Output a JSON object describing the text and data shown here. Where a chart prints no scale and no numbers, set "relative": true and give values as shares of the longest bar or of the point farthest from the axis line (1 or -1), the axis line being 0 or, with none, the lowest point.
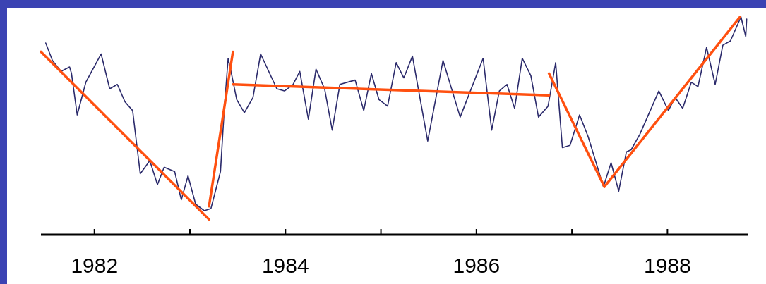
{
  "chart_data": {
    "type": "line",
    "relative": true,
    "xlim": [
      1981.44,
      1988.84
    ],
    "xticks": [
      1982,
      {
        "value": 1983,
        "label": null
      },
      1984,
      {
        "value": 1985,
        "label": null
      },
      1986,
      {
        "value": 1987,
        "label": null
      },
      1988
    ],
    "grid": false,
    "marker": "none",
    "line_style": "solid",
    "series": [
      {
        "color": "#2b2a6b",
        "x": [
          1981.49,
          1981.56,
          1981.65,
          1981.74,
          1981.76,
          1981.82,
          1981.91,
          1982.07,
          1982.16,
          1982.24,
          1982.32,
          1982.4,
          1982.48,
          1982.58,
          1982.66,
          1982.73,
          1982.84,
          1982.91,
          1982.98,
          1983.06,
          1983.15,
          1983.22,
          1983.32,
          1983.36,
          1983.4,
          1983.43,
          1983.49,
          1983.57,
          1983.66,
          1983.74,
          1983.91,
          1983.99,
          1984.08,
          1984.15,
          1984.24,
          1984.32,
          1984.41,
          1984.49,
          1984.57,
          1984.73,
          1984.82,
          1984.9,
          1984.98,
          1985.07,
          1985.16,
          1985.24,
          1985.33,
          1985.49,
          1985.65,
          1985.83,
          1986.07,
          1986.16,
          1986.24,
          1986.32,
          1986.4,
          1986.48,
          1986.57,
          1986.65,
          1986.75,
          1986.83,
          1986.9,
          1986.98,
          1987.08,
          1987.17,
          1987.33,
          1987.41,
          1987.49,
          1987.57,
          1987.62,
          1987.71,
          1987.91,
          1988.01,
          1988.08,
          1988.16,
          1988.25,
          1988.32,
          1988.41,
          1988.5,
          1988.58,
          1988.66,
          1988.77,
          1988.82,
          1988.83
        ],
        "values": [
          0.88,
          0.8,
          0.75,
          0.77,
          0.74,
          0.55,
          0.7,
          0.83,
          0.67,
          0.69,
          0.61,
          0.57,
          0.28,
          0.34,
          0.23,
          0.31,
          0.29,
          0.16,
          0.27,
          0.14,
          0.11,
          0.12,
          0.29,
          0.58,
          0.81,
          0.75,
          0.62,
          0.56,
          0.63,
          0.83,
          0.67,
          0.66,
          0.69,
          0.75,
          0.53,
          0.76,
          0.67,
          0.48,
          0.69,
          0.71,
          0.57,
          0.74,
          0.62,
          0.59,
          0.79,
          0.72,
          0.82,
          0.43,
          0.8,
          0.54,
          0.81,
          0.48,
          0.66,
          0.69,
          0.58,
          0.81,
          0.73,
          0.54,
          0.59,
          0.79,
          0.4,
          0.41,
          0.55,
          0.45,
          0.22,
          0.33,
          0.2,
          0.38,
          0.39,
          0.46,
          0.66,
          0.57,
          0.63,
          0.58,
          0.7,
          0.68,
          0.86,
          0.69,
          0.87,
          0.89,
          1,
          0.91,
          0.99
        ]
      },
      {
        "color": "#ff5010",
        "x": [
          1981.44,
          1983.2
        ],
        "values": [
          0.84,
          0.07
        ]
      },
      {
        "color": "#ff5010",
        "x": [
          1983.2,
          1983.45
        ],
        "values": [
          0.13,
          0.84
        ]
      },
      {
        "color": "#ff5010",
        "x": [
          1983.45,
          1986.76
        ],
        "values": [
          0.69,
          0.64
        ]
      },
      {
        "color": "#ff5010",
        "x": [
          1986.76,
          1987.34
        ],
        "values": [
          0.74,
          0.22
        ]
      },
      {
        "color": "#ff5010",
        "x": [
          1987.34,
          1988.76
        ],
        "values": [
          0.22,
          1
        ]
      }
    ]
  }
}
